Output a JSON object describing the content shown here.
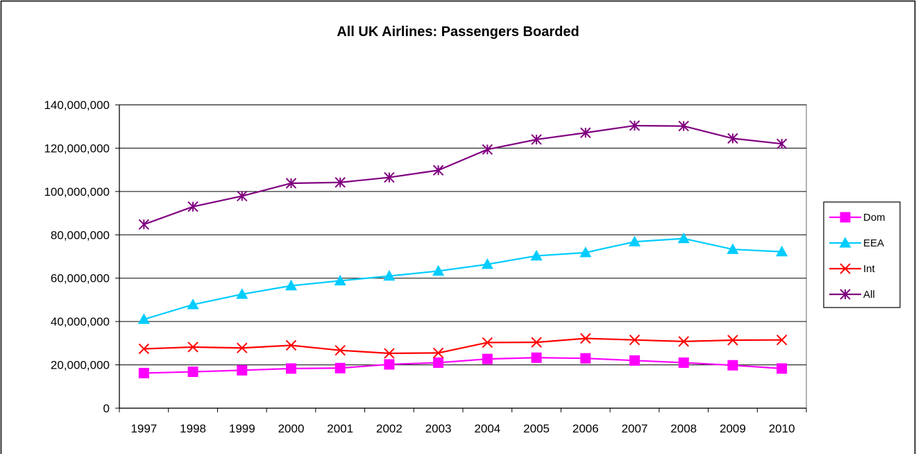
{
  "chart_data": {
    "type": "line",
    "title": "All UK Airlines: Passengers Boarded",
    "xlabel": "",
    "ylabel": "",
    "categories": [
      "1997",
      "1998",
      "1999",
      "2000",
      "2001",
      "2002",
      "2003",
      "2004",
      "2005",
      "2006",
      "2007",
      "2008",
      "2009",
      "2010"
    ],
    "ylim": [
      0,
      140000000
    ],
    "yticks": [
      0,
      20000000,
      40000000,
      60000000,
      80000000,
      100000000,
      120000000,
      140000000
    ],
    "ytick_labels": [
      "0",
      "20,000,000",
      "40,000,000",
      "60,000,000",
      "80,000,000",
      "100,000,000",
      "120,000,000",
      "140,000,000"
    ],
    "grid": true,
    "legend_position": "right",
    "series": [
      {
        "name": "Dom",
        "color": "#ff00ff",
        "marker": "square",
        "values": [
          16200000,
          16800000,
          17500000,
          18300000,
          18500000,
          20200000,
          21000000,
          22700000,
          23300000,
          23000000,
          22000000,
          21000000,
          19800000,
          18300000
        ]
      },
      {
        "name": "EEA",
        "color": "#00ccff",
        "marker": "triangle",
        "values": [
          41000000,
          47800000,
          52600000,
          56500000,
          58800000,
          61000000,
          63300000,
          66400000,
          70300000,
          71800000,
          76800000,
          78300000,
          73300000,
          72200000
        ]
      },
      {
        "name": "Int",
        "color": "#ff0000",
        "marker": "x",
        "values": [
          27400000,
          28200000,
          27800000,
          29000000,
          26700000,
          25300000,
          25500000,
          30300000,
          30400000,
          32200000,
          31500000,
          30800000,
          31400000,
          31500000
        ]
      },
      {
        "name": "All",
        "color": "#800080",
        "marker": "star",
        "values": [
          84800000,
          93000000,
          97900000,
          103800000,
          104200000,
          106500000,
          109800000,
          119400000,
          124000000,
          127100000,
          130400000,
          130200000,
          124500000,
          122000000
        ]
      }
    ]
  }
}
